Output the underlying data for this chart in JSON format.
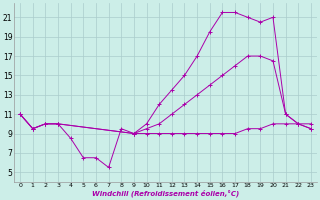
{
  "xlabel": "Windchill (Refroidissement éolien,°C)",
  "bg_color": "#cceee8",
  "grid_color": "#aacccc",
  "line_color": "#aa00aa",
  "xlim": [
    -0.5,
    23.5
  ],
  "ylim": [
    4,
    22.5
  ],
  "xticks": [
    0,
    1,
    2,
    3,
    4,
    5,
    6,
    7,
    8,
    9,
    10,
    11,
    12,
    13,
    14,
    15,
    16,
    17,
    18,
    19,
    20,
    21,
    22,
    23
  ],
  "yticks": [
    5,
    7,
    9,
    11,
    13,
    15,
    17,
    19,
    21
  ],
  "series": [
    {
      "x": [
        0,
        1,
        2,
        3,
        4,
        5,
        6,
        7,
        8,
        9,
        10,
        11,
        12,
        13,
        14,
        15,
        16,
        17,
        18,
        19,
        20,
        21,
        22,
        23
      ],
      "y": [
        11,
        9.5,
        10,
        10,
        8.5,
        6.5,
        6.5,
        5.5,
        9.5,
        9,
        9,
        9,
        9,
        9,
        9,
        9,
        9,
        9,
        9.5,
        9.5,
        10,
        10,
        10,
        10
      ]
    },
    {
      "x": [
        0,
        1,
        2,
        3,
        9,
        10,
        11,
        12,
        13,
        14,
        15,
        16,
        17,
        18,
        19,
        20,
        21,
        22,
        23
      ],
      "y": [
        11,
        9.5,
        10,
        10,
        9,
        9.5,
        10,
        11,
        12,
        13,
        14,
        15,
        16,
        17,
        17,
        16.5,
        11,
        10,
        9.5
      ]
    },
    {
      "x": [
        0,
        1,
        2,
        3,
        9,
        10,
        11,
        12,
        13,
        14,
        15,
        16,
        17,
        18,
        19,
        20,
        21,
        22,
        23
      ],
      "y": [
        11,
        9.5,
        10,
        10,
        9,
        10,
        12,
        13.5,
        15,
        17,
        19.5,
        21.5,
        21.5,
        21,
        20.5,
        21,
        11,
        10,
        9.5
      ]
    }
  ]
}
